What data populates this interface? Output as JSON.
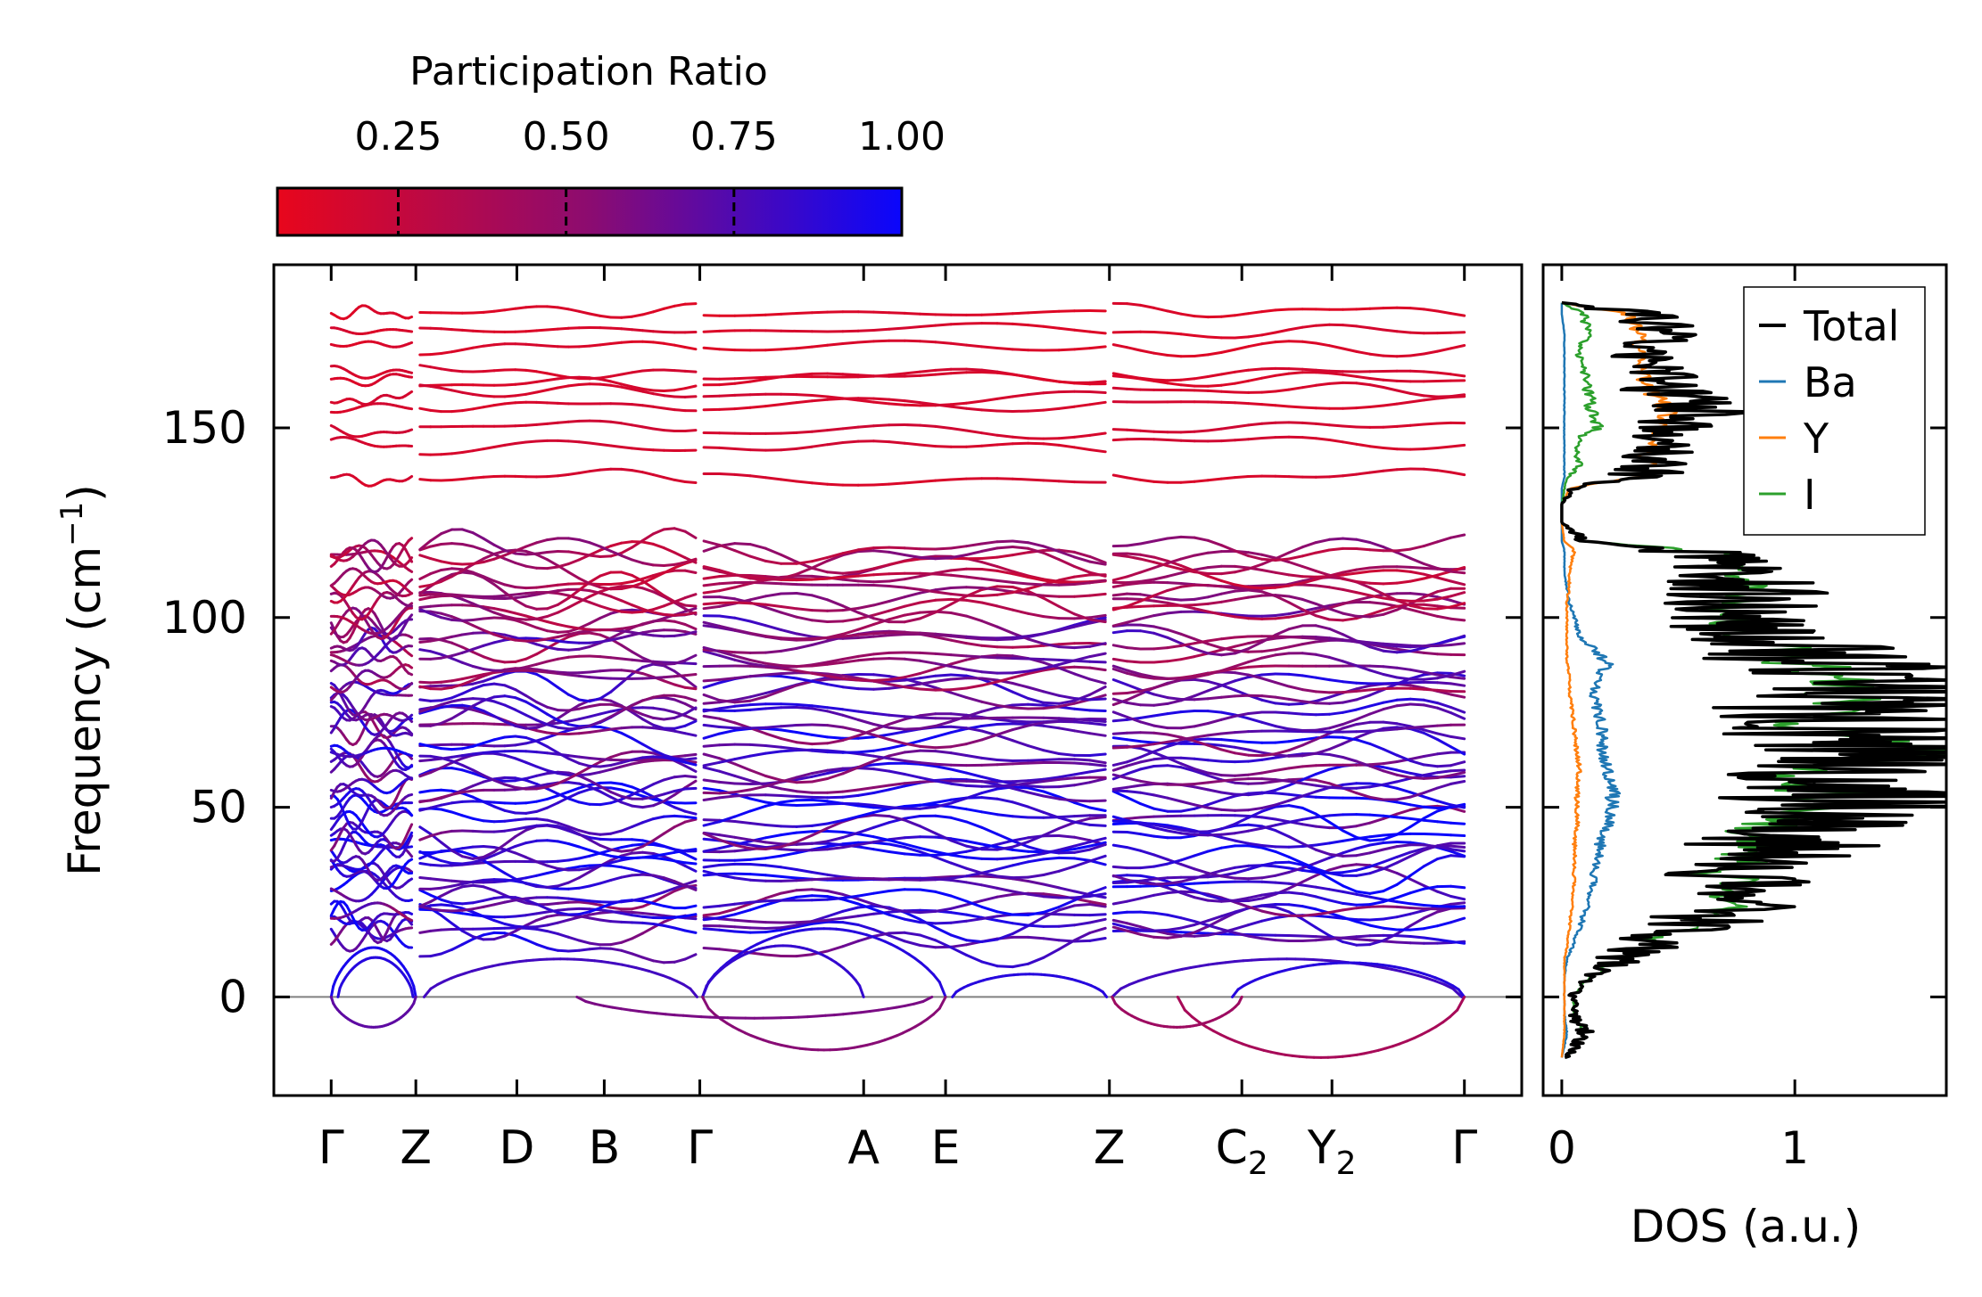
{
  "chart_data": [
    {
      "type": "line",
      "title": "",
      "xlabel": "",
      "ylabel": "Frequency (cm⁻¹)",
      "ylabel_base": "Frequency (cm",
      "ylabel_exp": "−1",
      "ylabel_close": ")",
      "ylim": [
        -26,
        193
      ],
      "yticks": [
        0,
        50,
        100,
        150
      ],
      "ytick_labels": [
        "0",
        "50",
        "100",
        "150"
      ],
      "xticks": [
        {
          "label": "Γ",
          "x": 0.0
        },
        {
          "label": "Z",
          "x": 0.62
        },
        {
          "label": "D",
          "x": 1.36
        },
        {
          "label": "B",
          "x": 2.0
        },
        {
          "label": "Γ",
          "x": 2.7
        },
        {
          "label": "A",
          "x": 3.9
        },
        {
          "label": "E",
          "x": 4.5
        },
        {
          "label": "Z",
          "x": 5.7
        },
        {
          "label": "C",
          "sub": "2",
          "x": 6.67
        },
        {
          "label": "Y",
          "sub": "2",
          "x": 7.33
        },
        {
          "label": "Γ",
          "x": 8.3
        }
      ],
      "xlim": [
        -0.42,
        8.72
      ],
      "path_breaks": [
        0.62,
        2.7,
        5.7
      ],
      "zero_line": true,
      "colorbar": {
        "label": "Participation Ratio",
        "ticks": [
          0.25,
          0.5,
          0.75,
          1.0
        ],
        "tick_labels": [
          "0.25",
          "0.50",
          "0.75",
          "1.00"
        ],
        "range": [
          0.07,
          1.0
        ],
        "color_low": "#e8061c",
        "color_mid": "#8c0c70",
        "color_high": "#0a06fc"
      },
      "bands": {
        "high_optical": [
          {
            "f": 180,
            "pr": 0.13
          },
          {
            "f": 176,
            "pr": 0.15
          },
          {
            "f": 172,
            "pr": 0.14
          },
          {
            "f": 165,
            "pr": 0.16
          },
          {
            "f": 162,
            "pr": 0.15
          },
          {
            "f": 159,
            "pr": 0.17
          },
          {
            "f": 156,
            "pr": 0.16
          },
          {
            "f": 150,
            "pr": 0.18
          },
          {
            "f": 145,
            "pr": 0.17
          },
          {
            "f": 137,
            "pr": 0.16
          }
        ],
        "mid_optical_range": [
          14,
          119
        ],
        "mid_optical_count": 52,
        "acoustic_top": [
          {
            "segment": "Γ-Z",
            "max": 13
          },
          {
            "segment": "Z-B",
            "max": 10
          },
          {
            "segment": "Γ-E",
            "max": 18
          },
          {
            "segment": "Z-Γ",
            "max": 10
          }
        ],
        "imaginary_min": [
          {
            "segment": "Γ-Z",
            "min": -8
          },
          {
            "segment": "Γ-E",
            "min": -14
          },
          {
            "segment": "Z-Γ",
            "min": -16
          }
        ]
      }
    },
    {
      "type": "line",
      "title": "",
      "xlabel": "DOS (a.u.)",
      "ylabel": "",
      "xlim": [
        -0.08,
        1.65
      ],
      "ylim": [
        -26,
        193
      ],
      "xticks": [
        0,
        1
      ],
      "xtick_labels": [
        "0",
        "1"
      ],
      "legend_position": "top-right",
      "series": [
        {
          "name": "Total",
          "color": "#000000"
        },
        {
          "name": "Ba",
          "color": "#1f77b4"
        },
        {
          "name": "Y",
          "color": "#ff7f0e"
        },
        {
          "name": "I",
          "color": "#2ca02c"
        }
      ],
      "envelope": {
        "frequencies": [
          -16,
          -10,
          -4,
          0,
          5,
          10,
          13,
          18,
          25,
          32,
          40,
          46,
          50,
          55,
          60,
          64,
          70,
          76,
          80,
          85,
          88,
          92,
          95,
          100,
          104,
          108,
          112,
          116,
          118,
          120,
          125,
          130,
          134,
          137,
          140,
          145,
          148,
          150,
          155,
          160,
          165,
          170,
          175,
          180,
          183
        ],
        "total": [
          0.02,
          0.1,
          0.05,
          0.05,
          0.1,
          0.25,
          0.35,
          0.55,
          0.72,
          0.8,
          0.95,
          1.05,
          1.3,
          1.15,
          1.2,
          1.55,
          1.2,
          1.15,
          1.3,
          1.3,
          1.1,
          1.0,
          0.9,
          0.7,
          0.8,
          0.85,
          0.7,
          0.6,
          0.5,
          0.1,
          0.0,
          0.0,
          0.05,
          0.3,
          0.45,
          0.4,
          0.5,
          0.6,
          0.55,
          0.45,
          0.4,
          0.35,
          0.45,
          0.35,
          0.0
        ],
        "Ba": [
          0.0,
          0.02,
          0.01,
          0.01,
          0.01,
          0.02,
          0.04,
          0.07,
          0.1,
          0.13,
          0.15,
          0.18,
          0.2,
          0.2,
          0.18,
          0.16,
          0.16,
          0.14,
          0.12,
          0.15,
          0.18,
          0.12,
          0.07,
          0.05,
          0.03,
          0.02,
          0.01,
          0.01,
          0.01,
          0.0,
          0.0,
          0.0,
          0.0,
          0.01,
          0.01,
          0.01,
          0.01,
          0.01,
          0.01,
          0.01,
          0.01,
          0.01,
          0.01,
          0.0,
          0.0
        ],
        "Y": [
          0.0,
          0.01,
          0.01,
          0.01,
          0.01,
          0.01,
          0.02,
          0.03,
          0.04,
          0.05,
          0.05,
          0.06,
          0.06,
          0.06,
          0.07,
          0.06,
          0.05,
          0.04,
          0.03,
          0.03,
          0.02,
          0.02,
          0.02,
          0.02,
          0.02,
          0.03,
          0.03,
          0.04,
          0.05,
          0.01,
          0.0,
          0.0,
          0.03,
          0.28,
          0.35,
          0.33,
          0.38,
          0.4,
          0.4,
          0.33,
          0.3,
          0.3,
          0.3,
          0.25,
          0.0
        ],
        "I": [
          0.02,
          0.08,
          0.04,
          0.04,
          0.09,
          0.22,
          0.3,
          0.45,
          0.58,
          0.62,
          0.7,
          0.75,
          1.1,
          0.85,
          0.9,
          1.5,
          0.95,
          0.95,
          1.0,
          0.95,
          0.8,
          0.8,
          0.7,
          0.55,
          0.7,
          0.78,
          0.65,
          0.55,
          0.48,
          0.08,
          0.0,
          0.0,
          0.01,
          0.02,
          0.07,
          0.05,
          0.08,
          0.15,
          0.1,
          0.1,
          0.08,
          0.06,
          0.1,
          0.08,
          0.0
        ]
      }
    }
  ]
}
